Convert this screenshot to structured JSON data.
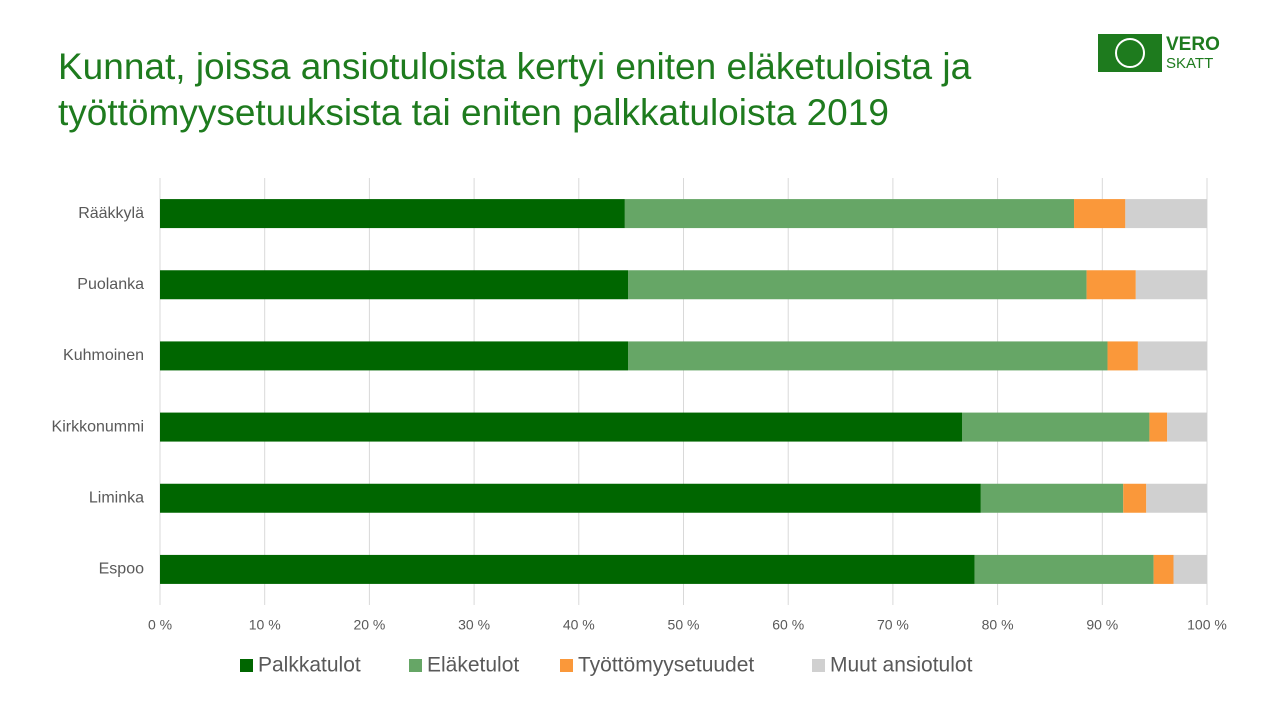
{
  "chart_data": {
    "type": "stacked-bar-horizontal",
    "title": "Kunnat, joissa ansiotuloista kertyi eniten eläketuloista ja työttömyysetuuksista tai eniten palkkatuloista 2019",
    "categories": [
      "Rääkkylä",
      "Puolanka",
      "Kuhmoinen",
      "Kirkkonummi",
      "Liminka",
      "Espoo"
    ],
    "series": [
      {
        "name": "Palkkatulot",
        "color": "#006600",
        "values": [
          44.4,
          44.7,
          44.7,
          76.6,
          78.4,
          77.8
        ]
      },
      {
        "name": "Eläketulot",
        "color": "#66a666",
        "values": [
          42.9,
          43.8,
          45.8,
          17.9,
          13.6,
          17.1
        ]
      },
      {
        "name": "Työttömyysetuudet",
        "color": "#fa983a",
        "values": [
          4.9,
          4.7,
          2.9,
          1.7,
          2.2,
          1.9
        ]
      },
      {
        "name": "Muut ansiotulot",
        "color": "#d0d0d0",
        "values": [
          7.8,
          6.8,
          6.6,
          3.8,
          5.8,
          3.2
        ]
      }
    ],
    "xlim": [
      0,
      100
    ],
    "xticks": [
      {
        "value": 0,
        "label": "0 %"
      },
      {
        "value": 10,
        "label": "10 %"
      },
      {
        "value": 20,
        "label": "20 %"
      },
      {
        "value": 30,
        "label": "30 %"
      },
      {
        "value": 40,
        "label": "40 %"
      },
      {
        "value": 50,
        "label": "50 %"
      },
      {
        "value": 60,
        "label": "60 %"
      },
      {
        "value": 70,
        "label": "70 %"
      },
      {
        "value": 80,
        "label": "80 %"
      },
      {
        "value": 90,
        "label": "90 %"
      },
      {
        "value": 100,
        "label": "100 %"
      }
    ],
    "grid": true,
    "legend": "bottom"
  },
  "logo": {
    "line1": "VERO",
    "line2": "SKATT"
  }
}
